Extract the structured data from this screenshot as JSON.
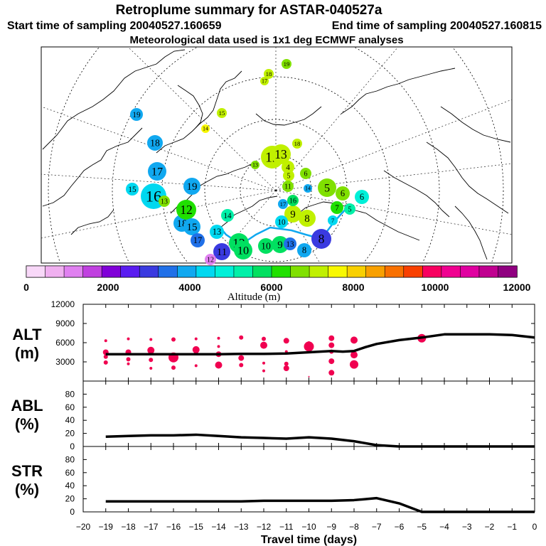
{
  "header": {
    "title": "Retroplume summary for ASTAR-040527a",
    "start_label": "Start time of sampling 20040527.160659",
    "end_label": "End time of sampling 20040527.160815",
    "met_label": "Meteorological data used is 1x1 deg ECMWF analyses"
  },
  "colorbar": {
    "colors": [
      "#f8d8f8",
      "#f0b0f0",
      "#e080f0",
      "#c040e0",
      "#8000d8",
      "#5a1cf0",
      "#3a3ae0",
      "#2070e8",
      "#10a8f0",
      "#00d8f0",
      "#00f0d8",
      "#00f0a8",
      "#00e060",
      "#20e000",
      "#80e000",
      "#c0f000",
      "#f8f800",
      "#f8d000",
      "#f8a000",
      "#f87000",
      "#f84000",
      "#f80060",
      "#f00090",
      "#e000a0",
      "#c00090",
      "#900080"
    ],
    "ticks": [
      "0",
      "2000",
      "4000",
      "6000",
      "8000",
      "10000",
      "12000"
    ],
    "label": "Altitude (m)"
  },
  "map": {
    "markers": [
      {
        "t": "19",
        "c": "#10a8f0"
      },
      {
        "t": "18",
        "c": "#10a8f0"
      },
      {
        "t": "17",
        "c": "#10a8f0"
      },
      {
        "t": "16",
        "c": "#00d8f0"
      },
      {
        "t": "15",
        "c": "#00d8f0"
      },
      {
        "t": "13",
        "c": "#80e000"
      },
      {
        "t": "19",
        "c": "#10a8f0"
      },
      {
        "t": "18",
        "c": "#10a8f0"
      },
      {
        "t": "12",
        "c": "#20e000"
      },
      {
        "t": "15",
        "c": "#10a8f0"
      },
      {
        "t": "17",
        "c": "#2070e8"
      },
      {
        "t": "14",
        "c": "#00f0a8"
      },
      {
        "t": "13",
        "c": "#00d8f0"
      },
      {
        "t": "11",
        "c": "#3a3ae0"
      },
      {
        "t": "12",
        "c": "#00e060"
      },
      {
        "t": "10",
        "c": "#00e060"
      },
      {
        "t": "10",
        "c": "#00e060"
      },
      {
        "t": "9",
        "c": "#00e060"
      },
      {
        "t": "13",
        "c": "#2070e8"
      },
      {
        "t": "12",
        "c": "#e080f0"
      },
      {
        "t": "8",
        "c": "#10a8f0"
      },
      {
        "t": "8",
        "c": "#3a3ae0"
      },
      {
        "t": "8",
        "c": "#c0f000"
      },
      {
        "t": "9",
        "c": "#c0f000"
      },
      {
        "t": "10",
        "c": "#00d8f0"
      },
      {
        "t": "16",
        "c": "#00e060"
      },
      {
        "t": "17",
        "c": "#10a8f0"
      },
      {
        "t": "12",
        "c": "#c0f000"
      },
      {
        "t": "13",
        "c": "#c0f000"
      },
      {
        "t": "4",
        "c": "#c0f000"
      },
      {
        "t": "5",
        "c": "#c0f000"
      },
      {
        "t": "6",
        "c": "#80e000"
      },
      {
        "t": "13",
        "c": "#80e000"
      },
      {
        "t": "11",
        "c": "#80e000"
      },
      {
        "t": "14",
        "c": "#10a8f0"
      },
      {
        "t": "5",
        "c": "#80e000"
      },
      {
        "t": "6",
        "c": "#80e000"
      },
      {
        "t": "7",
        "c": "#20e000"
      },
      {
        "t": "5",
        "c": "#00f0a8"
      },
      {
        "t": "6",
        "c": "#00f0d8"
      },
      {
        "t": "18",
        "c": "#c0f000"
      },
      {
        "t": "17",
        "c": "#c0f000"
      },
      {
        "t": "19",
        "c": "#80e000"
      },
      {
        "t": "15",
        "c": "#c0f000"
      },
      {
        "t": "14",
        "c": "#f8f800"
      },
      {
        "t": "18",
        "c": "#c0f000"
      },
      {
        "t": "7",
        "c": "#00d8f0"
      }
    ]
  },
  "chart_data": [
    {
      "type": "scatter+line",
      "panel_label": [
        "ALT",
        "(m)"
      ],
      "ylim": [
        0,
        12000
      ],
      "yticks": [
        "3000",
        "6000",
        "9000",
        "12000"
      ],
      "xlim": [
        -20,
        0
      ],
      "line": {
        "x": [
          -19,
          -18,
          -17,
          -16,
          -15,
          -14,
          -13,
          -12,
          -11,
          -10,
          -9,
          -8.5,
          -8,
          -7.5,
          -7,
          -6,
          -5,
          -4,
          -3,
          -2,
          -1,
          0
        ],
        "y": [
          4200,
          4200,
          4200,
          4200,
          4200,
          4200,
          4250,
          4250,
          4300,
          4500,
          4700,
          4600,
          4700,
          5300,
          5800,
          6400,
          6800,
          7300,
          7300,
          7300,
          7200,
          6800
        ]
      },
      "dots": [
        [
          -19,
          6300,
          2
        ],
        [
          -19,
          4500,
          4
        ],
        [
          -19,
          3800,
          3
        ],
        [
          -19,
          2900,
          3
        ],
        [
          -18,
          6600,
          2
        ],
        [
          -18,
          4500,
          4
        ],
        [
          -18,
          3400,
          3
        ],
        [
          -18,
          2700,
          2
        ],
        [
          -17,
          6500,
          2
        ],
        [
          -17,
          4800,
          5
        ],
        [
          -17,
          3300,
          3
        ],
        [
          -17,
          2000,
          2
        ],
        [
          -16,
          6500,
          3
        ],
        [
          -16,
          3700,
          7
        ],
        [
          -16,
          2100,
          3
        ],
        [
          -15,
          6600,
          2
        ],
        [
          -15,
          4900,
          5
        ],
        [
          -15,
          4400,
          3
        ],
        [
          -15,
          2400,
          2
        ],
        [
          -14,
          6700,
          2
        ],
        [
          -14,
          5400,
          2
        ],
        [
          -14,
          4200,
          4
        ],
        [
          -14,
          2500,
          5
        ],
        [
          -13,
          6800,
          3
        ],
        [
          -13,
          3600,
          4
        ],
        [
          -13,
          2500,
          3
        ],
        [
          -12,
          6600,
          3
        ],
        [
          -12,
          5600,
          5
        ],
        [
          -12,
          2800,
          2
        ],
        [
          -12,
          1600,
          2
        ],
        [
          -11,
          6300,
          4
        ],
        [
          -11,
          4600,
          2
        ],
        [
          -11,
          2700,
          3
        ],
        [
          -11,
          2000,
          4
        ],
        [
          -10,
          6000,
          2
        ],
        [
          -10,
          5400,
          7
        ],
        [
          -10,
          700,
          1
        ],
        [
          -9,
          6700,
          4
        ],
        [
          -9,
          5600,
          4
        ],
        [
          -9,
          4600,
          3
        ],
        [
          -9,
          3100,
          4
        ],
        [
          -9,
          1300,
          4
        ],
        [
          -8,
          6400,
          5
        ],
        [
          -8,
          4100,
          5
        ],
        [
          -8,
          2600,
          6
        ],
        [
          -5,
          6700,
          6
        ]
      ]
    },
    {
      "type": "line",
      "panel_label": [
        "ABL",
        "(%)"
      ],
      "ylim": [
        0,
        100
      ],
      "yticks": [
        "0",
        "20",
        "40",
        "60",
        "80"
      ],
      "x": [
        -19,
        -18,
        -17,
        -16,
        -15,
        -14,
        -13,
        -12,
        -11,
        -10,
        -9,
        -8,
        -7,
        -6,
        -5,
        -4,
        -3,
        -2,
        -1,
        0
      ],
      "y": [
        15,
        16,
        17,
        17,
        18,
        16,
        14,
        13,
        12,
        14,
        12,
        8,
        2,
        0,
        0,
        0,
        0,
        0,
        0,
        0
      ]
    },
    {
      "type": "line",
      "panel_label": [
        "STR",
        "(%)"
      ],
      "ylim": [
        0,
        100
      ],
      "yticks": [
        "0",
        "20",
        "40",
        "60",
        "80"
      ],
      "x": [
        -19,
        -18,
        -17,
        -16,
        -15,
        -14,
        -13,
        -12,
        -11,
        -10,
        -9,
        -8,
        -7,
        -6,
        -5,
        -4,
        -3,
        -2,
        -1,
        0
      ],
      "y": [
        16,
        16,
        16,
        16,
        16,
        16,
        16,
        17,
        17,
        17,
        17,
        18,
        21,
        13,
        0,
        0,
        0,
        0,
        0,
        0
      ],
      "xlabel": "Travel time (days)",
      "xticks": [
        "-20",
        "-19",
        "-18",
        "-17",
        "-16",
        "-15",
        "-14",
        "-13",
        "-12",
        "-11",
        "-10",
        "-9",
        "-8",
        "-7",
        "-6",
        "-5",
        "-4",
        "-3",
        "-2",
        "-1",
        "0"
      ]
    }
  ]
}
